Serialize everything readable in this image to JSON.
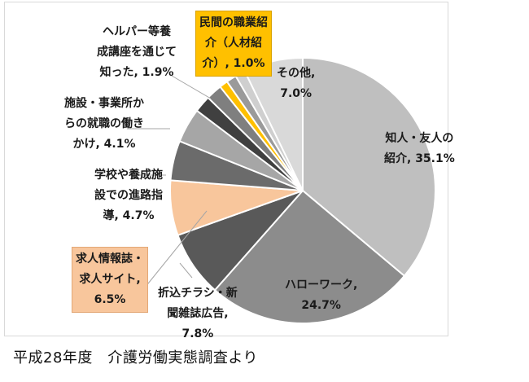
{
  "chart_data": {
    "type": "pie",
    "start_angle_deg": 0,
    "direction": "clockwise",
    "slices": [
      {
        "lines": [
          "知人・友人の",
          "紹介, 35.1%"
        ],
        "value": 35.1,
        "color": "#bfbfbf",
        "label_style": "plain"
      },
      {
        "lines": [
          "ハローワーク,",
          "24.7%"
        ],
        "value": 24.7,
        "color": "#8c8c8c",
        "label_style": "plain"
      },
      {
        "lines": [
          "折込チラシ・新",
          "聞雑誌広告,",
          "7.8%"
        ],
        "value": 7.8,
        "color": "#595959",
        "label_style": "plain"
      },
      {
        "lines": [
          "求人情報誌・",
          "求人サイト,",
          "6.5%"
        ],
        "value": 6.5,
        "color": "#f8c69c",
        "label_style": "boxed-peach"
      },
      {
        "lines": [
          "学校や養成施",
          "設での進路指",
          "導, 4.7%"
        ],
        "value": 4.7,
        "color": "#6b6b6b",
        "label_style": "plain"
      },
      {
        "lines": [
          "施設・事業所か",
          "らの就職の働き",
          "かけ, 4.1%"
        ],
        "value": 4.1,
        "color": "#a6a6a6",
        "label_style": "plain"
      },
      {
        "lines": [],
        "value": 2.0,
        "color": "#404040",
        "label_style": "none"
      },
      {
        "lines": [
          "ヘルパー等養",
          "成講座を通じて",
          "知った, 1.9%"
        ],
        "value": 1.9,
        "color": "#7f7f7f",
        "label_style": "plain"
      },
      {
        "lines": [
          "民間の職業紹",
          "介（人材紹",
          "介）, 1.0%"
        ],
        "value": 1.0,
        "color": "#ffc000",
        "label_style": "boxed-gold"
      },
      {
        "lines": [],
        "value": 1.2,
        "color": "#9a9a9a",
        "label_style": "none"
      },
      {
        "lines": [],
        "value": 1.2,
        "color": "#cfcfcf",
        "label_style": "none"
      },
      {
        "lines": [
          "その他,",
          "7.0%"
        ],
        "value": 7.0,
        "color": "#d9d9d9",
        "label_style": "plain"
      }
    ]
  },
  "caption": "平成28年度　介護労働実態調査より"
}
